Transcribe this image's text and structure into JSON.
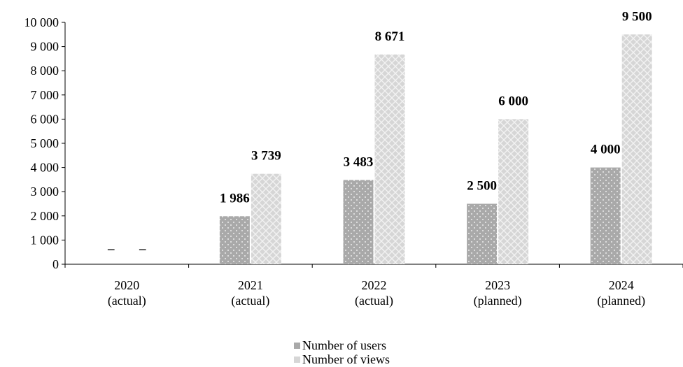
{
  "chart_data": {
    "type": "bar",
    "categories": [
      [
        "2020",
        "(actual)"
      ],
      [
        "2021",
        "(actual)"
      ],
      [
        "2022",
        "(actual)"
      ],
      [
        "2023",
        "(planned)"
      ],
      [
        "2024",
        "(planned)"
      ]
    ],
    "series": [
      {
        "name": "Number of users",
        "values": [
          0,
          1986,
          3483,
          2500,
          4000
        ],
        "labels": [
          "–",
          "1 986",
          "3 483",
          "2 500",
          "4 000"
        ],
        "color": "#a9a9a9"
      },
      {
        "name": "Number of views",
        "values": [
          0,
          3739,
          8671,
          6000,
          9500
        ],
        "labels": [
          "–",
          "3 739",
          "8 671",
          "6 000",
          "9 500"
        ],
        "color": "#d6d6d6"
      }
    ],
    "ylim": [
      0,
      10000
    ],
    "yticks": [
      0,
      1000,
      2000,
      3000,
      4000,
      5000,
      6000,
      7000,
      8000,
      9000,
      10000
    ],
    "ytick_labels": [
      "0",
      "1 000",
      "2 000",
      "3 000",
      "4 000",
      "5 000",
      "6 000",
      "7 000",
      "8 000",
      "9 000",
      "10 000"
    ],
    "title": "",
    "xlabel": "",
    "ylabel": "",
    "grid": false,
    "legend_position": "bottom-center"
  }
}
